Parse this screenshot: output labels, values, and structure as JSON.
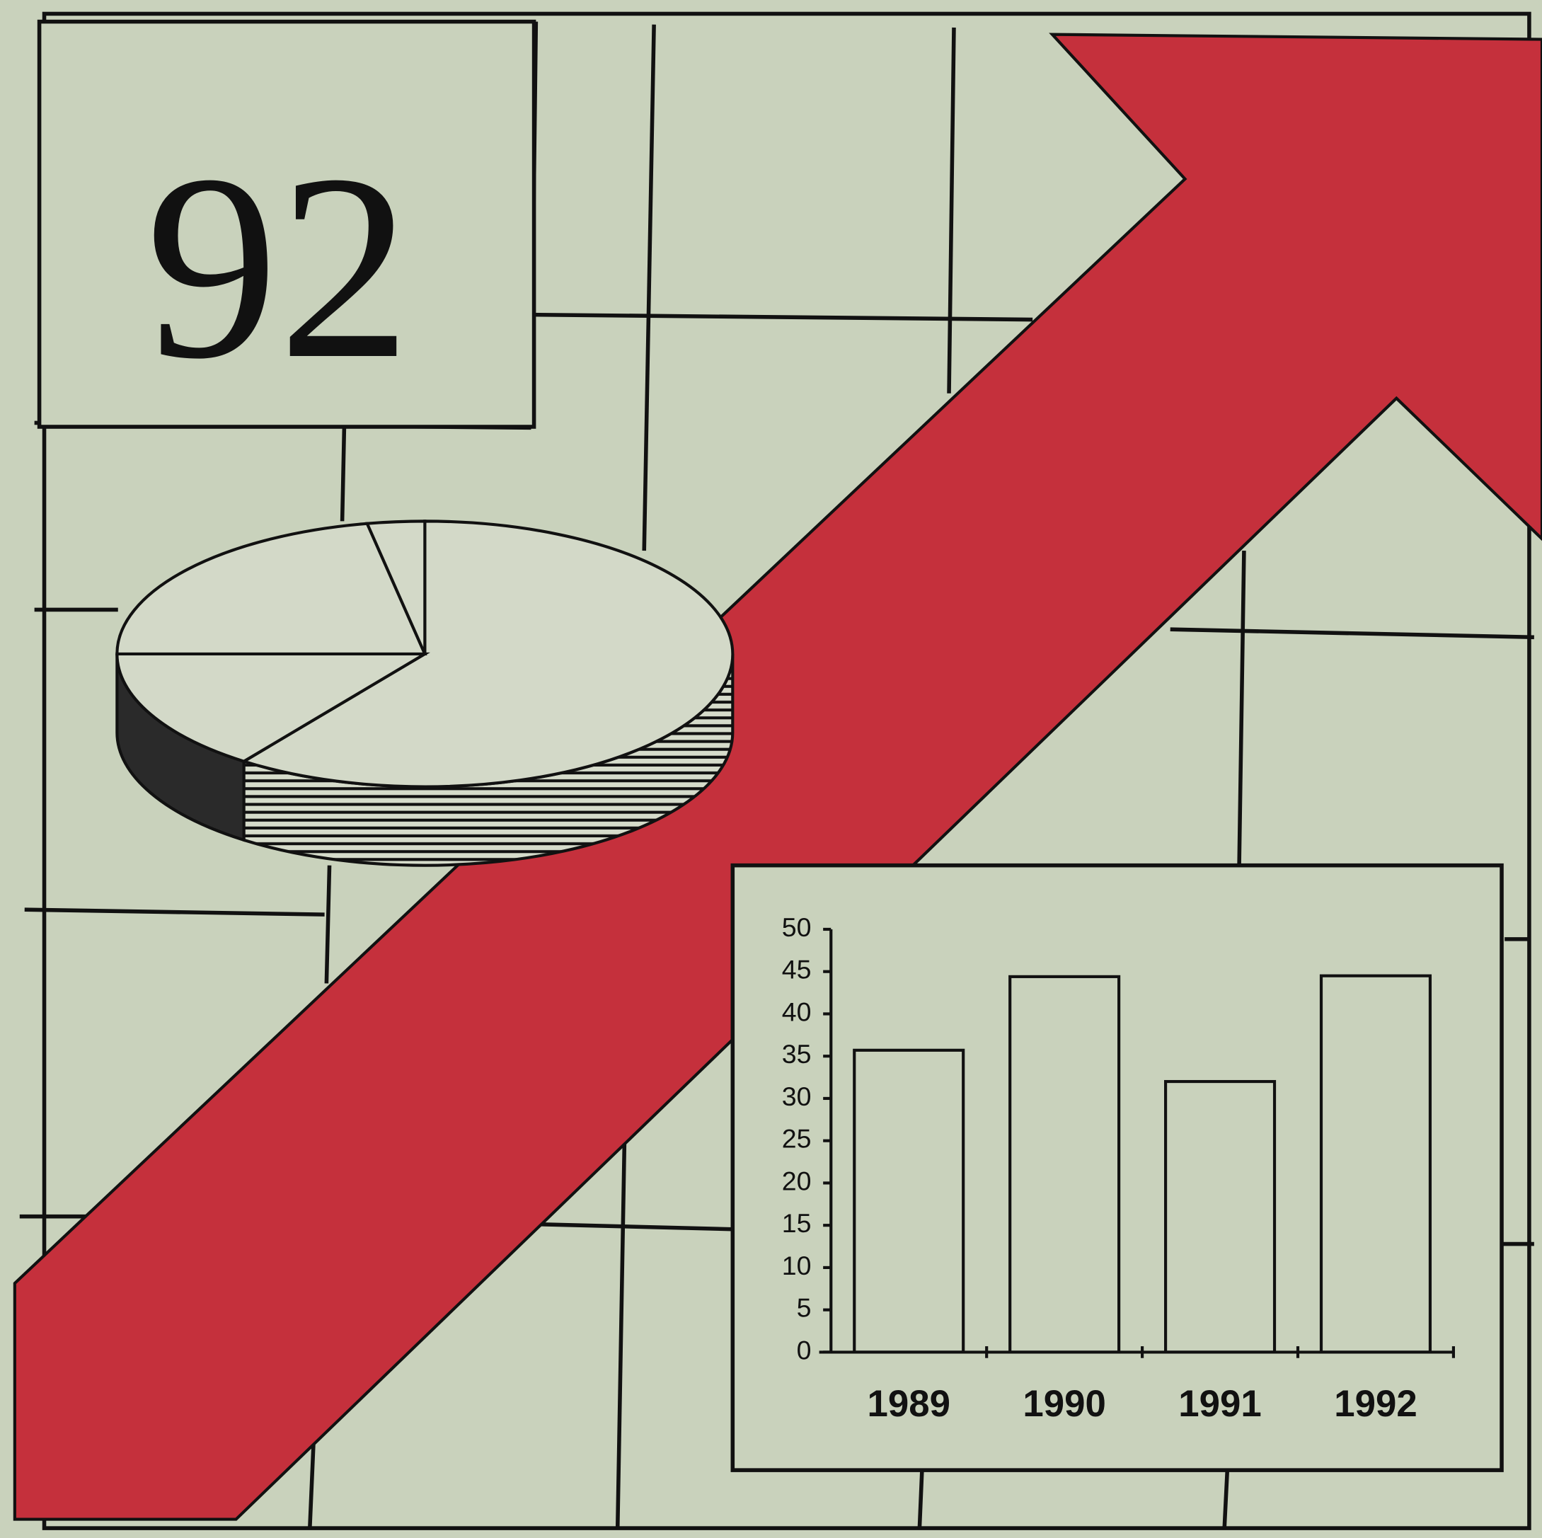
{
  "title": "92",
  "chart_data": [
    {
      "type": "pie",
      "values": [
        60,
        15,
        22,
        3
      ]
    },
    {
      "type": "bar",
      "categories": [
        "1989",
        "1990",
        "1991",
        "1992"
      ],
      "values": [
        35.7,
        44.4,
        32,
        44.5
      ],
      "ylim": [
        0,
        50
      ],
      "yticks": [
        0,
        5,
        10,
        15,
        20,
        25,
        30,
        35,
        40,
        45,
        50
      ],
      "grid": false
    }
  ]
}
